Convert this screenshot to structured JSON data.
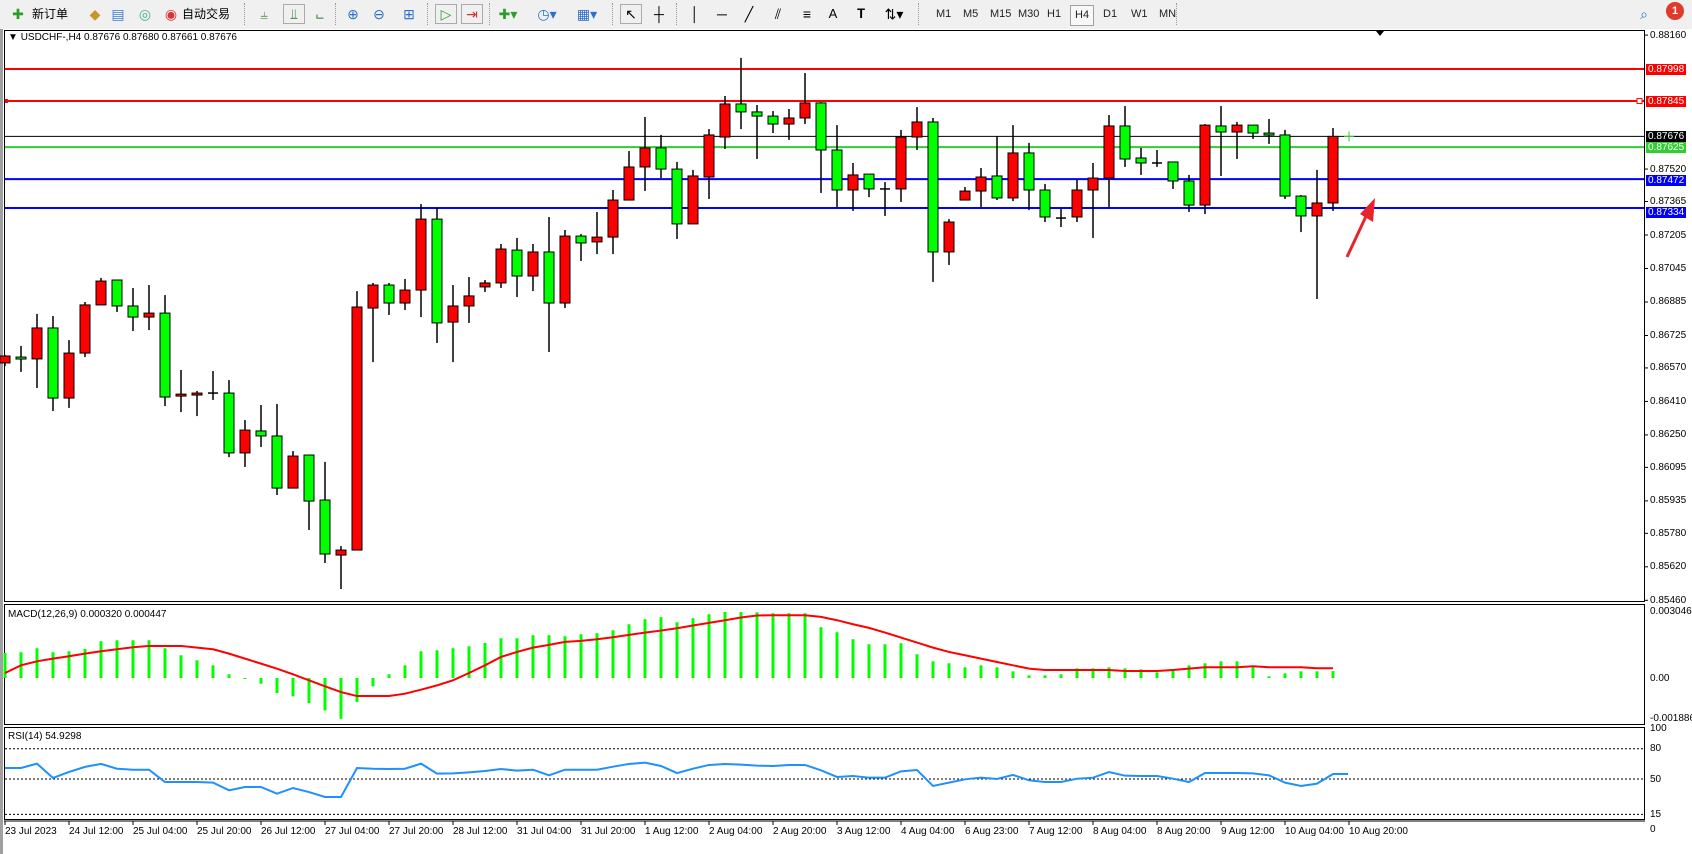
{
  "toolbar": {
    "new_order_label": "新订单",
    "autotrading_label": "自动交易",
    "icons": [
      "new-order-icon",
      "metaeditor-icon",
      "market-watch-icon",
      "signals-icon",
      "autotrading-icon",
      "bar-chart-icon",
      "candlestick-icon",
      "line-chart-icon",
      "zoom-in-icon",
      "zoom-out-icon",
      "tile-windows-icon",
      "autoscroll-icon",
      "chart-shift-icon",
      "indicators-icon",
      "periods-icon",
      "templates-icon",
      "cursor-icon",
      "crosshair-icon",
      "vertical-line-icon",
      "horizontal-line-icon",
      "trendline-icon",
      "fibonacci-icon",
      "fibonacci-fan-icon",
      "text-icon",
      "text-label-icon",
      "arrows-icon",
      "search-icon",
      "notification-icon"
    ],
    "timeframes": [
      "M1",
      "M5",
      "M15",
      "M30",
      "H1",
      "H4",
      "D1",
      "W1",
      "MN"
    ],
    "active_timeframe": "H4",
    "notification_count": "1"
  },
  "chart": {
    "symbol_header": "USDCHF-,H4",
    "ohlc_header": "0.87676 0.87680 0.87661 0.87676",
    "colors": {
      "bull": "#ff0000",
      "bear": "#00ff00",
      "outline": "#000000",
      "signal": "#ff0000",
      "histogram": "#00ff00",
      "rsi": "#1e90ff"
    }
  },
  "chart_data": [
    {
      "type": "candlestick",
      "title": "USDCHF-,H4",
      "ylim": [
        0.8546,
        0.8816
      ],
      "price_ticks": [
        "0.88160",
        "0.87520",
        "0.87365",
        "0.87205",
        "0.87045",
        "0.86885",
        "0.86725",
        "0.86570",
        "0.86410",
        "0.86250",
        "0.86095",
        "0.85935",
        "0.85780",
        "0.85620",
        "0.85460"
      ],
      "time_labels": [
        "23 Jul 2023",
        "24 Jul 12:00",
        "25 Jul 04:00",
        "25 Jul 20:00",
        "26 Jul 12:00",
        "27 Jul 04:00",
        "27 Jul 20:00",
        "28 Jul 12:00",
        "31 Jul 04:00",
        "31 Jul 20:00",
        "1 Aug 12:00",
        "2 Aug 04:00",
        "2 Aug 20:00",
        "3 Aug 12:00",
        "4 Aug 04:00",
        "6 Aug 23:00",
        "7 Aug 12:00",
        "8 Aug 04:00",
        "8 Aug 20:00",
        "9 Aug 12:00",
        "10 Aug 04:00",
        "10 Aug 20:00"
      ],
      "hlines": [
        {
          "price": "0.87998",
          "color": "#ff0000"
        },
        {
          "price": "0.87845",
          "color": "#ff0000"
        },
        {
          "price": "0.87676",
          "color": "#000000"
        },
        {
          "price": "0.87625",
          "color": "#33cc33"
        },
        {
          "price": "0.87472",
          "color": "#0000ff"
        },
        {
          "price": "0.87334",
          "color": "#0000ff"
        }
      ],
      "annotation": "red-arrow-pointing-up-right",
      "ohlc": [
        [
          0.86594,
          0.86632,
          0.86579,
          0.86627
        ],
        [
          0.86622,
          0.86675,
          0.86551,
          0.86613
        ],
        [
          0.86613,
          0.86828,
          0.86474,
          0.86761
        ],
        [
          0.86761,
          0.86818,
          0.86364,
          0.86426
        ],
        [
          0.86426,
          0.86703,
          0.86379,
          0.86641
        ],
        [
          0.86641,
          0.86885,
          0.86622,
          0.86871
        ],
        [
          0.86871,
          0.87,
          0.86871,
          0.86985
        ],
        [
          0.8699,
          0.8699,
          0.86837,
          0.86866
        ],
        [
          0.86866,
          0.86952,
          0.86746,
          0.86813
        ],
        [
          0.86813,
          0.86966,
          0.86751,
          0.86832
        ],
        [
          0.86832,
          0.86918,
          0.86388,
          0.86431
        ],
        [
          0.86436,
          0.8656,
          0.86359,
          0.86445
        ],
        [
          0.86441,
          0.8646,
          0.8634,
          0.8645
        ],
        [
          0.8645,
          0.86555,
          0.86417,
          0.8645
        ],
        [
          0.8645,
          0.86512,
          0.86144,
          0.86164
        ],
        [
          0.86164,
          0.86321,
          0.86097,
          0.86273
        ],
        [
          0.86269,
          0.86393,
          0.86192,
          0.86245
        ],
        [
          0.86245,
          0.86398,
          0.85963,
          0.85996
        ],
        [
          0.85996,
          0.86173,
          0.85996,
          0.86149
        ],
        [
          0.86154,
          0.86154,
          0.85796,
          0.85934
        ],
        [
          0.85939,
          0.86121,
          0.85638,
          0.85681
        ],
        [
          0.85676,
          0.85719,
          0.85514,
          0.857
        ],
        [
          0.857,
          0.86937,
          0.857,
          0.86861
        ],
        [
          0.86856,
          0.86976,
          0.86598,
          0.86966
        ],
        [
          0.86966,
          0.86976,
          0.86823,
          0.8688
        ],
        [
          0.8688,
          0.86995,
          0.86847,
          0.86942
        ],
        [
          0.86942,
          0.87353,
          0.86813,
          0.87281
        ],
        [
          0.87281,
          0.87334,
          0.86689,
          0.86785
        ],
        [
          0.86789,
          0.86966,
          0.86598,
          0.86866
        ],
        [
          0.86866,
          0.87004,
          0.86785,
          0.86914
        ],
        [
          0.86957,
          0.8699,
          0.86933,
          0.86976
        ],
        [
          0.86976,
          0.87162,
          0.86952,
          0.87138
        ],
        [
          0.87133,
          0.87191,
          0.86909,
          0.87009
        ],
        [
          0.87009,
          0.87162,
          0.86937,
          0.87124
        ],
        [
          0.87124,
          0.87291,
          0.86646,
          0.8688
        ],
        [
          0.8688,
          0.87229,
          0.86856,
          0.872
        ],
        [
          0.872,
          0.8721,
          0.87081,
          0.87167
        ],
        [
          0.87172,
          0.87315,
          0.87114,
          0.87195
        ],
        [
          0.87195,
          0.8742,
          0.87114,
          0.87372
        ],
        [
          0.87372,
          0.87606,
          0.87372,
          0.8753
        ],
        [
          0.8753,
          0.87769,
          0.87415,
          0.87621
        ],
        [
          0.87621,
          0.87683,
          0.87477,
          0.8752
        ],
        [
          0.8752,
          0.87554,
          0.87186,
          0.87258
        ],
        [
          0.87258,
          0.87516,
          0.87258,
          0.87487
        ],
        [
          0.87482,
          0.87711,
          0.87377,
          0.87683
        ],
        [
          0.87673,
          0.87869,
          0.87616,
          0.87831
        ],
        [
          0.87831,
          0.88051,
          0.87711,
          0.87793
        ],
        [
          0.87793,
          0.87826,
          0.87568,
          0.87773
        ],
        [
          0.87773,
          0.87797,
          0.87692,
          0.87735
        ],
        [
          0.87735,
          0.87807,
          0.87659,
          0.87764
        ],
        [
          0.87764,
          0.87979,
          0.87735,
          0.87836
        ],
        [
          0.87836,
          0.8784,
          0.87406,
          0.87611
        ],
        [
          0.87611,
          0.8773,
          0.87339,
          0.8742
        ],
        [
          0.8742,
          0.87549,
          0.8732,
          0.87492
        ],
        [
          0.87496,
          0.87496,
          0.87386,
          0.87425
        ],
        [
          0.87425,
          0.87458,
          0.87296,
          0.87425
        ],
        [
          0.87425,
          0.87707,
          0.87363,
          0.87673
        ],
        [
          0.87673,
          0.87816,
          0.87611,
          0.87745
        ],
        [
          0.87745,
          0.87764,
          0.86981,
          0.87124
        ],
        [
          0.87124,
          0.87281,
          0.87062,
          0.87267
        ],
        [
          0.87372,
          0.87434,
          0.87372,
          0.87415
        ],
        [
          0.87415,
          0.87525,
          0.87339,
          0.87482
        ],
        [
          0.87487,
          0.87678,
          0.87372,
          0.87382
        ],
        [
          0.87382,
          0.8773,
          0.87367,
          0.87597
        ],
        [
          0.87597,
          0.87645,
          0.87324,
          0.8742
        ],
        [
          0.8742,
          0.87449,
          0.87267,
          0.87291
        ],
        [
          0.87286,
          0.87329,
          0.87243,
          0.87286
        ],
        [
          0.87291,
          0.87468,
          0.87267,
          0.8742
        ],
        [
          0.8742,
          0.87549,
          0.87191,
          0.87477
        ],
        [
          0.87477,
          0.87778,
          0.87339,
          0.87726
        ],
        [
          0.87726,
          0.87821,
          0.8753,
          0.87568
        ],
        [
          0.87573,
          0.87621,
          0.87492,
          0.87549
        ],
        [
          0.87549,
          0.87611,
          0.8753,
          0.87549
        ],
        [
          0.87554,
          0.87554,
          0.87425,
          0.87463
        ],
        [
          0.87463,
          0.87492,
          0.87315,
          0.87348
        ],
        [
          0.87348,
          0.87735,
          0.87305,
          0.8773
        ],
        [
          0.87726,
          0.87821,
          0.87487,
          0.87697
        ],
        [
          0.87697,
          0.87745,
          0.87568,
          0.8773
        ],
        [
          0.8773,
          0.8773,
          0.87664,
          0.87692
        ],
        [
          0.87692,
          0.87759,
          0.8764,
          0.87683
        ],
        [
          0.87683,
          0.87707,
          0.87377,
          0.87391
        ],
        [
          0.87391,
          0.87396,
          0.87219,
          0.87296
        ],
        [
          0.87296,
          0.87516,
          0.86899,
          0.87358
        ],
        [
          0.87358,
          0.87716,
          0.8732,
          0.87676
        ]
      ]
    },
    {
      "type": "bar+line",
      "title": "MACD(12,26,9) 0.000320 0.000447",
      "ylim": [
        -0.001886,
        0.003046
      ],
      "ticks": [
        "0.003046",
        "0.00",
        "-0.001886"
      ],
      "histogram": [
        0.001155,
        0.001186,
        0.001371,
        0.001186,
        0.001232,
        0.00134,
        0.001694,
        0.00174,
        0.00174,
        0.00174,
        0.001371,
        0.001047,
        0.000816,
        0.000585,
        0.000169,
        -3.1e-05,
        -0.000262,
        -0.000693,
        -0.000847,
        -0.001155,
        -0.001494,
        -0.001879,
        -0.001109,
        -0.000385,
        0.000169,
        0.000585,
        0.001232,
        0.001278,
        0.001371,
        0.001463,
        0.001617,
        0.001833,
        0.001833,
        0.001971,
        0.001971,
        0.001925,
        0.002017,
        0.002064,
        0.002202,
        0.002479,
        0.00271,
        0.002803,
        0.002572,
        0.002757,
        0.002941,
        0.003046,
        0.00304,
        0.003034,
        0.002988,
        0.002988,
        0.002988,
        0.002341,
        0.00211,
        0.001786,
        0.001555,
        0.001555,
        0.001602,
        0.001093,
        0.00077,
        0.000678,
        0.000493,
        0.000585,
        0.000493,
        0.000308,
        0.000123,
        0.000123,
        0.000169,
        0.000447,
        0.000447,
        0.000493,
        0.000447,
        0.0004,
        0.000262,
        0.0004,
        0.000585,
        0.000678,
        0.00077,
        0.00077,
        0.000493,
        7.7e-05,
        0.000216,
        0.000308,
        0.000308,
        0.00032
      ],
      "signal": [
        0.000231,
        0.000585,
        0.00077,
        0.000893,
        0.001001,
        0.001124,
        0.001232,
        0.001324,
        0.001417,
        0.001478,
        0.001478,
        0.001478,
        0.001401,
        0.001324,
        0.001124,
        0.000893,
        0.000662,
        0.000431,
        0.000169,
        -0.000108,
        -0.000385,
        -0.000647,
        -0.000832,
        -0.000832,
        -0.000832,
        -0.000724,
        -0.000539,
        -0.000339,
        -0.000108,
        0.000231,
        0.000585,
        0.00097,
        0.001201,
        0.001401,
        0.001525,
        0.001663,
        0.001709,
        0.001786,
        0.001879,
        0.001987,
        0.002094,
        0.002187,
        0.002295,
        0.002418,
        0.002541,
        0.002664,
        0.002787,
        0.00288,
        0.002895,
        0.002895,
        0.002895,
        0.002818,
        0.002664,
        0.002479,
        0.00231,
        0.002094,
        0.001863,
        0.001632,
        0.001401,
        0.001201,
        0.001047,
        0.000893,
        0.000739,
        0.000585,
        0.000431,
        0.00037,
        0.00037,
        0.00037,
        0.00037,
        0.00037,
        0.000323,
        0.000323,
        0.000323,
        0.00037,
        0.000431,
        0.000493,
        0.000493,
        0.000493,
        0.000539,
        0.000493,
        0.000493,
        0.000493,
        0.000447,
        0.000447
      ]
    },
    {
      "type": "line",
      "title": "RSI(14) 54.9298",
      "ylim": [
        0,
        100
      ],
      "ticks": [
        "100",
        "80",
        "50",
        "15",
        "0"
      ],
      "levels": [
        80,
        50,
        15
      ],
      "values": [
        60.9,
        60.9,
        65.2,
        51,
        57,
        62,
        64.9,
        60.2,
        59.2,
        59.2,
        47,
        47,
        47,
        46.4,
        38.8,
        42.1,
        42.1,
        35.5,
        41.1,
        37.1,
        32.2,
        32.2,
        60.9,
        60.2,
        59.9,
        60.2,
        65.2,
        55.3,
        55.6,
        56.6,
        57.9,
        59.9,
        58.3,
        59.2,
        53.6,
        59.2,
        59.2,
        59.2,
        62.2,
        64.9,
        66.2,
        62.9,
        55.9,
        60.2,
        63.9,
        64.9,
        64.2,
        63.2,
        62.9,
        63.9,
        63.9,
        58.6,
        52,
        53,
        51.3,
        51.3,
        57.6,
        58.9,
        43.1,
        46.4,
        49.7,
        51.3,
        50,
        54,
        48.7,
        47,
        47,
        50.3,
        51.3,
        56.9,
        53.3,
        53,
        53,
        50.3,
        47,
        55.9,
        55.9,
        55.9,
        55.6,
        53.6,
        46.4,
        43.1,
        45.4,
        54.9298
      ]
    }
  ]
}
